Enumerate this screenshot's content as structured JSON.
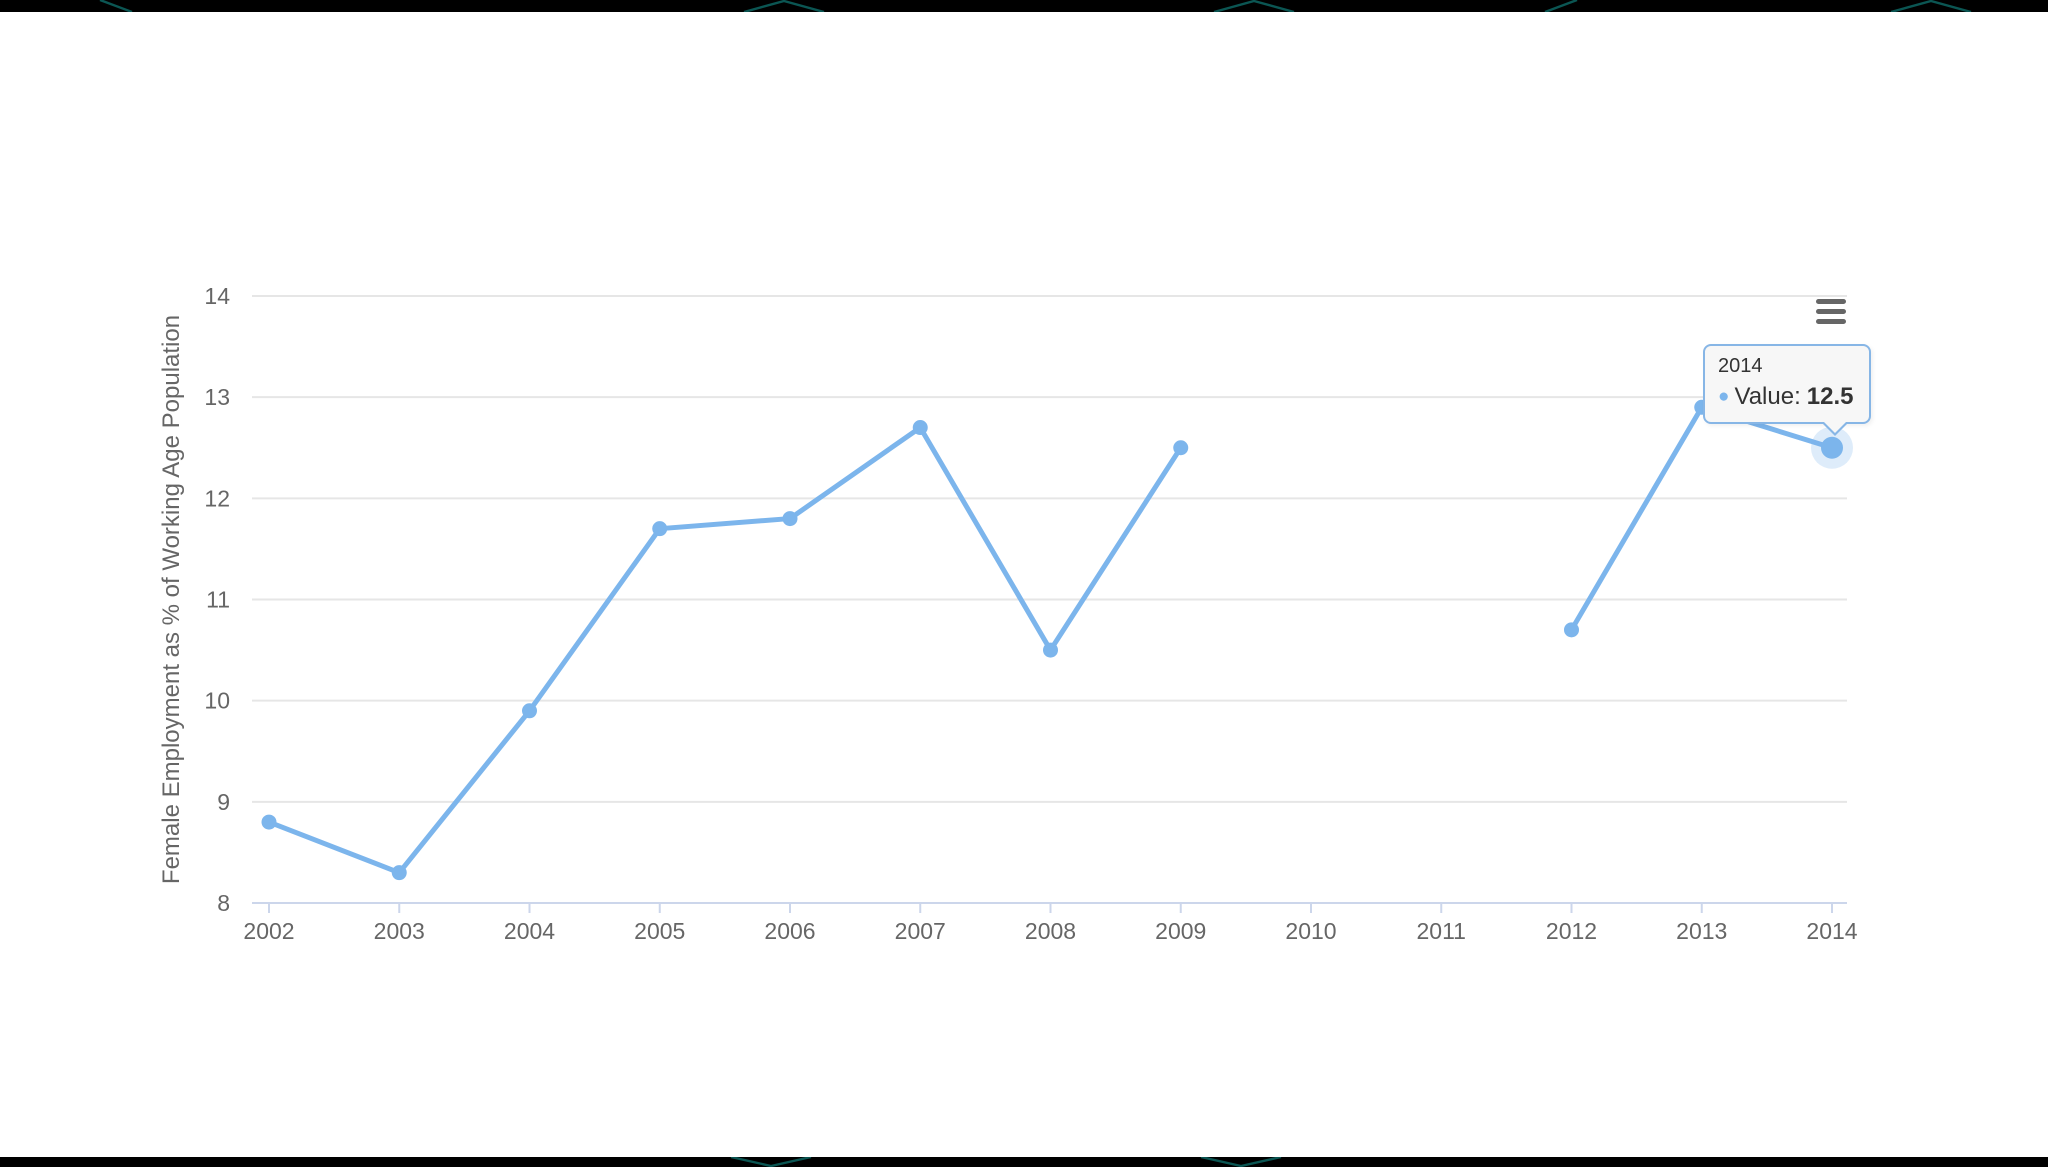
{
  "chart_data": {
    "type": "line",
    "categories": [
      "2002",
      "2003",
      "2004",
      "2005",
      "2006",
      "2007",
      "2008",
      "2009",
      "2010",
      "2011",
      "2012",
      "2013",
      "2014"
    ],
    "series": [
      {
        "name": "Value",
        "color": "#7cb5ec",
        "values": [
          8.8,
          8.3,
          9.9,
          11.7,
          11.8,
          12.7,
          10.5,
          12.5,
          null,
          null,
          10.7,
          12.9,
          12.5
        ]
      }
    ],
    "title": "",
    "xlabel": "",
    "ylabel": "Female Employment as % of Working Age Population",
    "ylim": [
      8,
      14
    ],
    "yticks": [
      8,
      9,
      10,
      11,
      12,
      13,
      14
    ],
    "grid": true,
    "legend_position": "none",
    "hovered_point": {
      "category": "2014",
      "value": 12.5
    }
  },
  "tooltip": {
    "title": "2014",
    "bullet": "●",
    "series_label": "Value:",
    "value": "12.5"
  },
  "export_menu": {
    "icon": "hamburger-icon"
  },
  "colors": {
    "series": "#7cb5ec",
    "grid": "#e6e6e6",
    "axis": "#ccd6eb",
    "label": "#666666",
    "tooltip_bg": "#f7f7f7",
    "desktop_accent": "#0d6561",
    "letterbox": "#000000"
  }
}
